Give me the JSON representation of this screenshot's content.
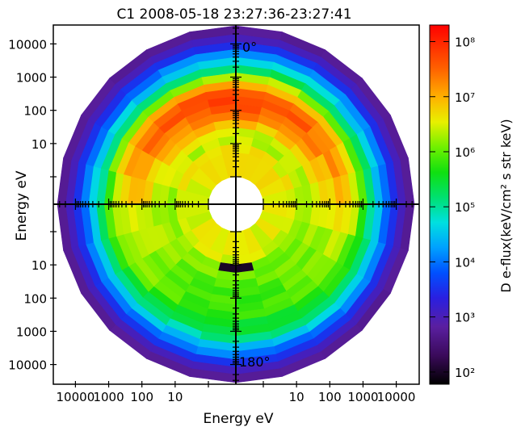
{
  "chart_data": {
    "type": "polar-spectrogram",
    "title": "C1  2008-05-18  23:27:36-23:27:41",
    "xlabel": "Energy  eV",
    "ylabel": "Energy  eV",
    "angle_labels": {
      "top": "0°",
      "bottom": "180°"
    },
    "y_tick_labels_upper": [
      "10000",
      "1000",
      "100",
      "10"
    ],
    "y_tick_labels_lower": [
      "10",
      "100",
      "1000",
      "10000"
    ],
    "x_tick_labels_left": [
      "10000",
      "1000",
      "100",
      "10"
    ],
    "x_tick_labels_right": [
      "10",
      "100",
      "1000",
      "10000"
    ],
    "energy_range_eV": [
      1,
      35000
    ],
    "pitch_angle_range_deg": [
      0,
      180
    ],
    "pitch_angle_bins": 12,
    "energy_rings": [
      {
        "energy_eV": 25000,
        "log_flux_pa0": 2.75,
        "log_flux_pa180": 2.75
      },
      {
        "energy_eV": 15000,
        "log_flux_pa0": 3.05,
        "log_flux_pa180": 3.05
      },
      {
        "energy_eV": 9000,
        "log_flux_pa0": 3.5,
        "log_flux_pa180": 3.5
      },
      {
        "energy_eV": 5200,
        "log_flux_pa0": 4.0,
        "log_flux_pa180": 4.0
      },
      {
        "energy_eV": 3000,
        "log_flux_pa0": 4.6,
        "log_flux_pa180": 4.5
      },
      {
        "energy_eV": 1800,
        "log_flux_pa0": 5.3,
        "log_flux_pa180": 5.0
      },
      {
        "energy_eV": 1000,
        "log_flux_pa0": 6.3,
        "log_flux_pa180": 5.4
      },
      {
        "energy_eV": 600,
        "log_flux_pa0": 7.1,
        "log_flux_pa180": 5.6
      },
      {
        "energy_eV": 350,
        "log_flux_pa0": 7.6,
        "log_flux_pa180": 5.7
      },
      {
        "energy_eV": 200,
        "log_flux_pa0": 7.8,
        "log_flux_pa180": 5.75
      },
      {
        "energy_eV": 120,
        "log_flux_pa0": 7.6,
        "log_flux_pa180": 5.8
      },
      {
        "energy_eV": 70,
        "log_flux_pa0": 7.3,
        "log_flux_pa180": 5.85
      },
      {
        "energy_eV": 40,
        "log_flux_pa0": 6.9,
        "log_flux_pa180": 5.95
      },
      {
        "energy_eV": 22,
        "log_flux_pa0": 6.5,
        "log_flux_pa180": 6.1
      },
      {
        "energy_eV": 13,
        "log_flux_pa0": 6.4,
        "log_flux_pa180": 6.2
      },
      {
        "energy_eV": 7,
        "log_flux_pa0": 6.6,
        "log_flux_pa180": 6.45
      },
      {
        "energy_eV": 4,
        "log_flux_pa0": 6.6,
        "log_flux_pa180": 6.5
      }
    ],
    "low_flux_patch": {
      "energy_eV": 11,
      "pitch_angles_deg": [
        165,
        195
      ],
      "log_flux": 2.0
    },
    "colorbar": {
      "label": "D e-flux(keV/cm² s str keV)",
      "scale": "log",
      "range": [
        60,
        200000000
      ],
      "tick_values": [
        100,
        1000,
        10000,
        100000,
        1000000,
        10000000,
        100000000
      ],
      "tick_labels": [
        "10²",
        "10³",
        "10⁴",
        "10⁵",
        "10⁶",
        "10⁷",
        "10⁸"
      ]
    }
  }
}
